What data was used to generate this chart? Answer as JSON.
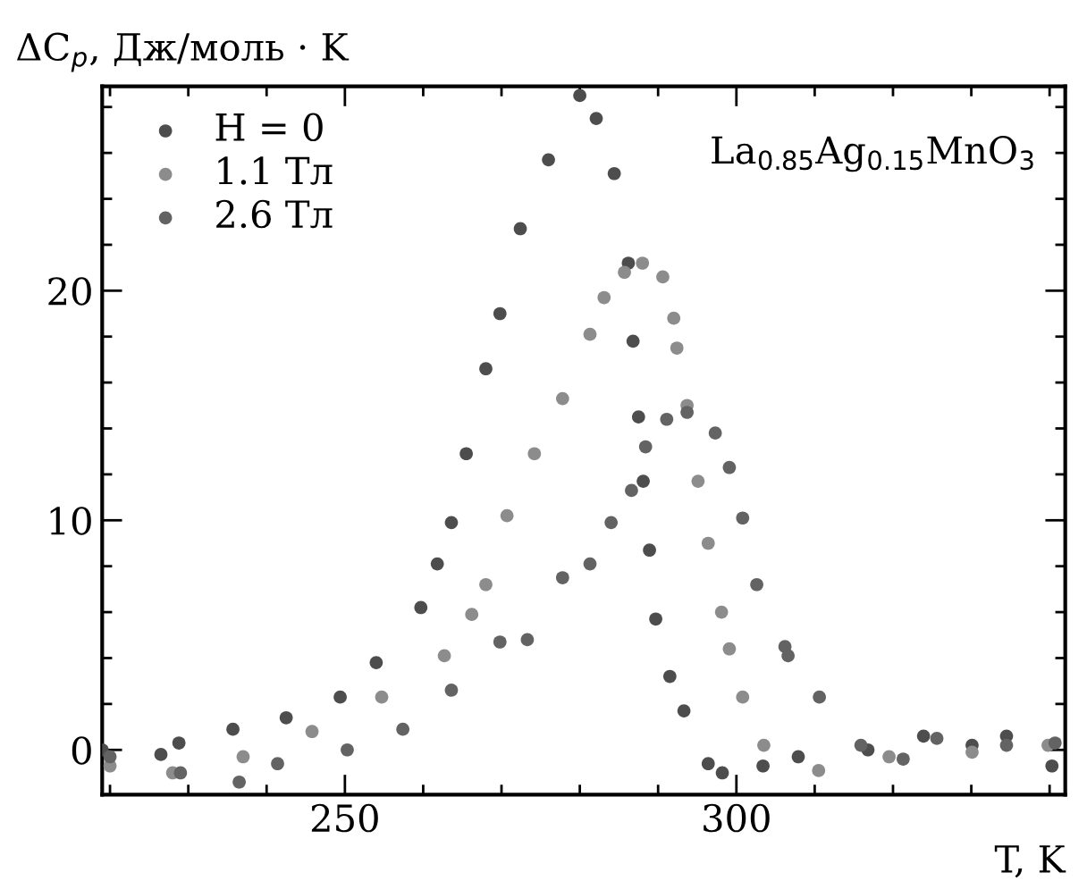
{
  "chart_data": {
    "type": "scatter",
    "xlabel": "T, K",
    "ylabel": "ΔC$_{p}$, Дж/моль · K",
    "annotations": [
      "La$_{0.85}$Ag$_{0.15}$MnO$_{3}$"
    ],
    "xlim": [
      219,
      342
    ],
    "ylim": [
      -1.95,
      28.9
    ],
    "xticks": [
      {
        "value": 220,
        "label": null
      },
      {
        "value": 230,
        "label": null
      },
      {
        "value": 240,
        "label": null
      },
      250,
      {
        "value": 260,
        "label": null
      },
      {
        "value": 270,
        "label": null
      },
      {
        "value": 280,
        "label": null
      },
      {
        "value": 290,
        "label": null
      },
      300,
      {
        "value": 310,
        "label": null
      },
      {
        "value": 320,
        "label": null
      },
      {
        "value": 330,
        "label": null
      },
      {
        "value": 340,
        "label": null
      }
    ],
    "yticks": [
      0,
      {
        "value": 2,
        "label": null
      },
      {
        "value": 4,
        "label": null
      },
      {
        "value": 6,
        "label": null
      },
      {
        "value": 8,
        "label": null
      },
      10,
      {
        "value": 12,
        "label": null
      },
      {
        "value": 14,
        "label": null
      },
      {
        "value": 16,
        "label": null
      },
      {
        "value": 18,
        "label": null
      },
      20,
      {
        "value": 22,
        "label": null
      },
      {
        "value": 24,
        "label": null
      },
      {
        "value": 26,
        "label": null
      },
      {
        "value": 28,
        "label": null
      }
    ],
    "grid": false,
    "legend": "top left",
    "marker": "circle",
    "series": [
      {
        "name": "H = 0",
        "color": "#4d4d4d",
        "x": [
          219,
          226.5,
          228.8,
          235.7,
          242.5,
          249.4,
          254,
          259.7,
          261.8,
          263.6,
          265.5,
          268,
          269.8,
          272.4,
          276,
          280,
          282.1,
          284.4,
          286.2,
          286.8,
          287.5,
          288.1,
          288.9,
          289.7,
          291.5,
          293.3,
          296.4,
          298.2,
          303.4,
          307.9,
          316.8,
          323.9,
          330.1,
          334.5,
          340.3
        ],
        "values": [
          0,
          -0.2,
          0.3,
          0.9,
          1.4,
          2.3,
          3.8,
          6.2,
          8.1,
          9.9,
          12.9,
          16.6,
          19,
          22.7,
          25.7,
          28.5,
          27.5,
          25.1,
          21.2,
          17.8,
          14.5,
          11.7,
          8.7,
          5.7,
          3.2,
          1.7,
          -0.6,
          -1.0,
          -0.7,
          -0.3,
          0,
          0.6,
          0.2,
          0.6,
          -0.7
        ]
      },
      {
        "name": "1.1 Тл",
        "color": "#8c8c8c",
        "x": [
          220,
          228,
          237,
          245.8,
          254.7,
          262.7,
          266.2,
          268,
          270.7,
          274.2,
          277.8,
          281.3,
          283.1,
          285.7,
          288,
          290.6,
          292,
          292.4,
          293.7,
          295.1,
          296.4,
          298.1,
          299.1,
          300.8,
          303.5,
          310.5,
          319.5,
          330.1,
          339.8
        ],
        "values": [
          -0.7,
          -1.0,
          -0.3,
          0.8,
          2.3,
          4.1,
          5.9,
          7.2,
          10.2,
          12.9,
          15.3,
          18.1,
          19.7,
          20.8,
          21.2,
          20.6,
          18.8,
          17.5,
          15.0,
          11.7,
          9.0,
          6.0,
          4.4,
          2.3,
          0.2,
          -0.9,
          -0.3,
          -0.1,
          0.2
        ]
      },
      {
        "name": "2.6 Тл",
        "color": "#636363",
        "x": [
          220,
          229,
          236.5,
          241.4,
          250.3,
          257.4,
          263.6,
          269.8,
          273.3,
          277.8,
          281.3,
          284,
          286.6,
          288.4,
          291.1,
          293.7,
          297.3,
          299.1,
          300.8,
          302.6,
          306.2,
          306.6,
          310.6,
          315.9,
          321.3,
          325.6,
          334.5,
          340.7
        ],
        "values": [
          -0.3,
          -1.0,
          -1.4,
          -0.6,
          0.0,
          0.9,
          2.6,
          4.7,
          4.8,
          7.5,
          8.1,
          9.9,
          11.3,
          13.2,
          14.4,
          14.7,
          13.8,
          12.3,
          10.1,
          7.2,
          4.5,
          4.1,
          2.3,
          0.2,
          -0.4,
          0.5,
          0.2,
          0.3
        ]
      }
    ]
  }
}
